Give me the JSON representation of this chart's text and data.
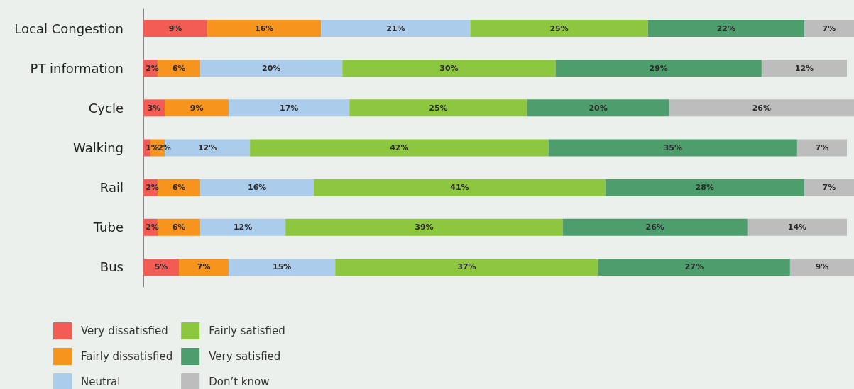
{
  "chart_data": {
    "type": "bar",
    "orientation": "horizontal",
    "stacked": true,
    "legend": "bottom left",
    "tick_labels": "y",
    "xlim": [
      0,
      100
    ],
    "categories": [
      "Local Congestion",
      "PT information",
      "Cycle",
      "Walking",
      "Rail",
      "Tube",
      "Bus"
    ],
    "series": [
      {
        "name": "Very dissatisfied",
        "color": "#f25c54",
        "values": [
          9,
          2,
          3,
          1,
          2,
          2,
          5
        ],
        "value_labels": [
          "9%",
          "2%",
          "3%",
          "1%",
          "2%",
          "2%",
          "5%"
        ]
      },
      {
        "name": "Fairly dissatisfied",
        "color": "#f7941d",
        "values": [
          16,
          6,
          9,
          2,
          6,
          6,
          7
        ],
        "value_labels": [
          "16%",
          "6%",
          "9%",
          "2%",
          "6%",
          "6%",
          "7%"
        ]
      },
      {
        "name": "Neutral",
        "color": "#abcdeb",
        "values": [
          21,
          20,
          17,
          12,
          16,
          12,
          15
        ],
        "value_labels": [
          "21%",
          "20%",
          "17%",
          "12%",
          "16%",
          "12%",
          "15%"
        ]
      },
      {
        "name": "Fairly satisfied",
        "color": "#8dc63f",
        "values": [
          25,
          30,
          25,
          42,
          41,
          39,
          37
        ],
        "value_labels": [
          "25%",
          "30%",
          "25%",
          "42%",
          "41%",
          "39%",
          "37%"
        ]
      },
      {
        "name": "Very satisfied",
        "color": "#4d9e6c",
        "values": [
          22,
          29,
          20,
          35,
          28,
          26,
          27
        ],
        "value_labels": [
          "22%",
          "29%",
          "20%",
          "35%",
          "28%",
          "26%",
          "27%"
        ]
      },
      {
        "name": "Don’t know",
        "color": "#bdbdbd",
        "values": [
          7,
          12,
          26,
          7,
          7,
          14,
          9
        ],
        "value_labels": [
          "7%",
          "12%",
          "26%",
          "7%",
          "7%",
          "14%",
          "9%"
        ]
      }
    ]
  }
}
